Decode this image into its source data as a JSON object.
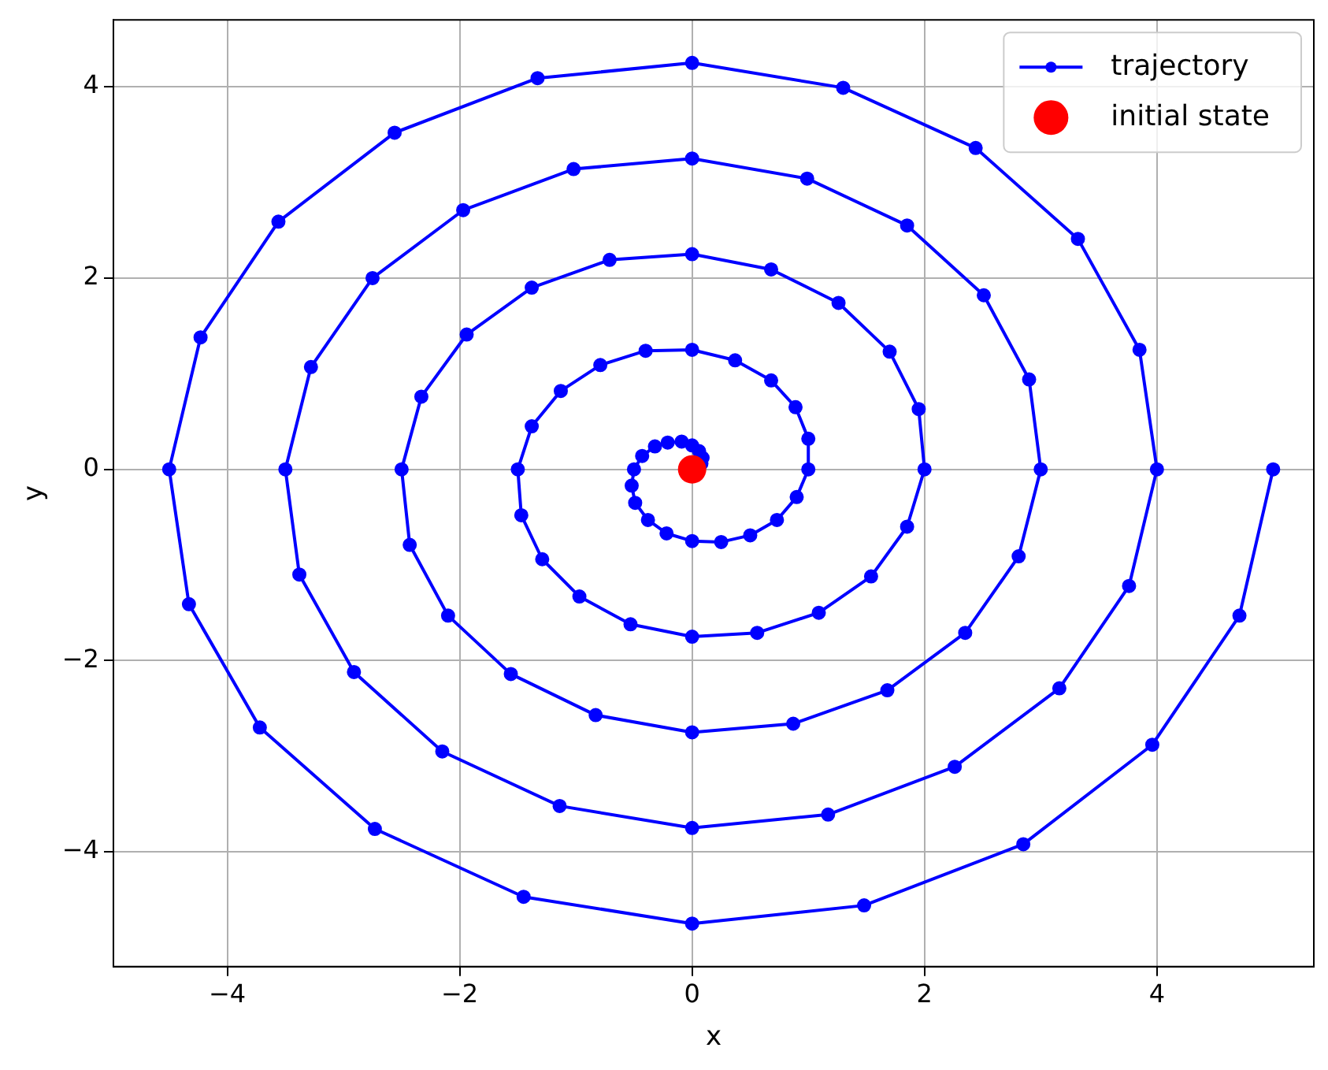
{
  "chart_data": {
    "type": "line",
    "xlabel": "x",
    "ylabel": "y",
    "xlim": [
      -4.98,
      5.35
    ],
    "ylim": [
      -5.2,
      4.7
    ],
    "xticks": [
      {
        "value": -4,
        "label": "−4"
      },
      {
        "value": -2,
        "label": "−2"
      },
      0,
      2,
      4
    ],
    "yticks": [
      {
        "value": -4,
        "label": "−4"
      },
      {
        "value": -2,
        "label": "−2"
      },
      0,
      2,
      4
    ],
    "grid": true,
    "legend": "top right",
    "series": [
      {
        "name": "trajectory",
        "type": "line",
        "marker": "circle",
        "color": "#0000ff",
        "x": [
          5,
          4.71,
          3.96,
          2.85,
          1.48,
          0,
          -1.45,
          -2.73,
          -3.72,
          -4.33,
          -4.5,
          -4.23,
          -3.56,
          -2.56,
          -1.33,
          0,
          1.3,
          2.44,
          3.32,
          3.85,
          4,
          3.76,
          3.16,
          2.26,
          1.17,
          0,
          -1.14,
          -2.15,
          -2.91,
          -3.38,
          -3.5,
          -3.28,
          -2.75,
          -1.97,
          -1.02,
          0,
          0.99,
          1.85,
          2.51,
          2.9,
          3,
          2.81,
          2.35,
          1.68,
          0.87,
          0,
          -0.83,
          -1.56,
          -2.1,
          -2.43,
          -2.5,
          -2.33,
          -1.94,
          -1.38,
          -0.71,
          0,
          0.68,
          1.26,
          1.7,
          1.95,
          2,
          1.85,
          1.54,
          1.09,
          0.56,
          0,
          -0.53,
          -0.97,
          -1.29,
          -1.47,
          -1.5,
          -1.38,
          -1.13,
          -0.79,
          -0.4,
          0,
          0.37,
          0.68,
          0.89,
          1,
          1,
          0.9,
          0.73,
          0.5,
          0.25,
          0,
          -0.22,
          -0.38,
          -0.49,
          -0.52,
          -0.5,
          -0.43,
          -0.32,
          -0.21,
          -0.09,
          0,
          0.06,
          0.09,
          0.08,
          0.05,
          0
        ],
        "values": [
          0,
          -1.53,
          -2.88,
          -3.92,
          -4.56,
          -4.75,
          -4.47,
          -3.76,
          -2.7,
          -1.41,
          0,
          1.38,
          2.59,
          3.52,
          4.09,
          4.25,
          3.99,
          3.36,
          2.41,
          1.25,
          0,
          -1.22,
          -2.29,
          -3.11,
          -3.61,
          -3.75,
          -3.52,
          -2.95,
          -2.12,
          -1.1,
          0,
          1.07,
          2,
          2.71,
          3.14,
          3.25,
          3.04,
          2.55,
          1.82,
          0.94,
          0,
          -0.91,
          -1.71,
          -2.31,
          -2.66,
          -2.75,
          -2.57,
          -2.14,
          -1.53,
          -0.79,
          0,
          0.76,
          1.41,
          1.9,
          2.19,
          2.25,
          2.09,
          1.74,
          1.23,
          0.63,
          0,
          -0.6,
          -1.12,
          -1.5,
          -1.71,
          -1.75,
          -1.62,
          -1.33,
          -0.94,
          -0.48,
          0,
          0.45,
          0.82,
          1.09,
          1.24,
          1.25,
          1.14,
          0.93,
          0.65,
          0.32,
          0,
          -0.29,
          -0.53,
          -0.69,
          -0.76,
          -0.75,
          -0.67,
          -0.53,
          -0.35,
          -0.17,
          0,
          0.14,
          0.24,
          0.28,
          0.29,
          0.25,
          0.19,
          0.12,
          0.06,
          0.02,
          0
        ]
      },
      {
        "name": "initial state",
        "type": "scatter",
        "marker": "circle",
        "color": "#ff0000",
        "x": [
          0
        ],
        "values": [
          0
        ]
      }
    ]
  }
}
